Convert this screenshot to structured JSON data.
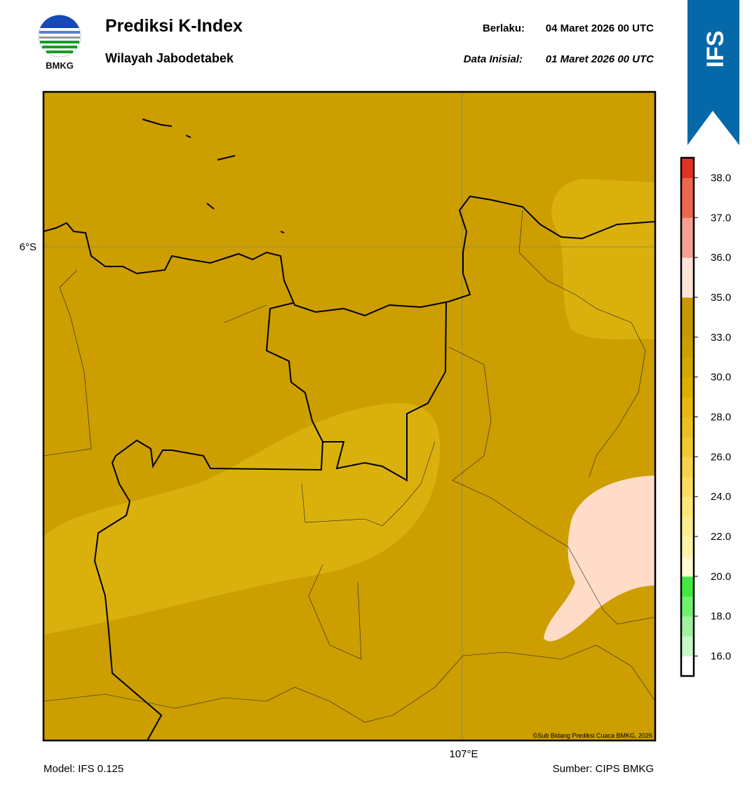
{
  "header": {
    "logo_text": "BMKG",
    "title": "Prediksi K-Index",
    "subtitle": "Wilayah Jabodetabek",
    "valid_label": "Berlaku:",
    "valid_time": "04 Maret 2026 00 UTC",
    "init_label": "Data Inisial:",
    "init_time": "01 Maret 2026 00 UTC",
    "badge": "IFS"
  },
  "map": {
    "lat_label": "6°S",
    "lon_label": "107°E",
    "copyright": "©Sub Bidang Prediksi Cuaca BMKG, 2026"
  },
  "colorbar": {
    "ticks": [
      {
        "value": 16,
        "label": "16.0"
      },
      {
        "value": 18,
        "label": "18.0"
      },
      {
        "value": 20,
        "label": "20.0"
      },
      {
        "value": 22,
        "label": "22.0"
      },
      {
        "value": 24,
        "label": "24.0"
      },
      {
        "value": 26,
        "label": "26.0"
      },
      {
        "value": 28,
        "label": "28.0"
      },
      {
        "value": 30,
        "label": "30.0"
      },
      {
        "value": 33,
        "label": "33.0"
      },
      {
        "value": 35,
        "label": "35.0"
      },
      {
        "value": 36,
        "label": "36.0"
      },
      {
        "value": 37,
        "label": "37.0"
      },
      {
        "value": 38,
        "label": "38.0"
      }
    ],
    "colors": [
      "#ffffff",
      "#c8f8c8",
      "#a0f0a0",
      "#70f070",
      "#40e840",
      "#fffad0",
      "#fff3a8",
      "#ffee90",
      "#ffe678",
      "#fadc60",
      "#f5d24a",
      "#f0c830",
      "#ecbf20",
      "#e6b810",
      "#dcae00",
      "#d4a600",
      "#cc9e00",
      "#c89800",
      "#c89800",
      "#ffe4da",
      "#ffe4da",
      "#f5a090",
      "#f5a090",
      "#ee6650",
      "#ee6650",
      "#e03420"
    ]
  },
  "footer": {
    "model": "Model: IFS 0.125",
    "source": "Sumber: CIPS BMKG"
  }
}
